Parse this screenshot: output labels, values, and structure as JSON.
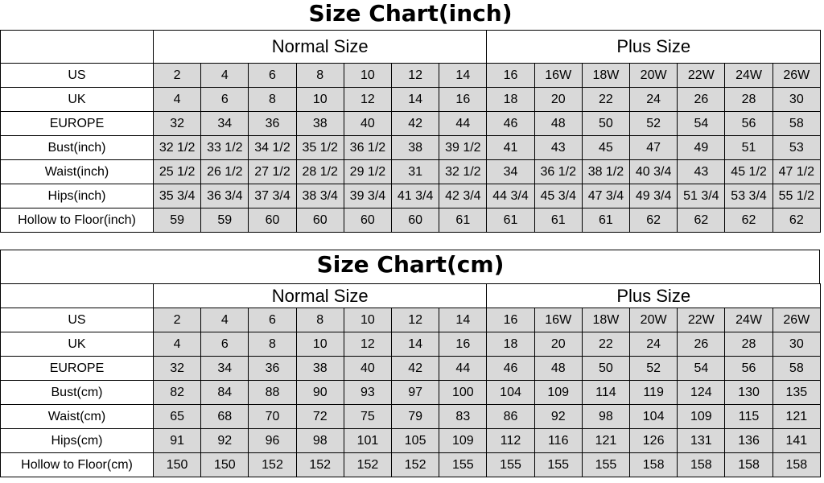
{
  "charts": [
    {
      "title": "Size Chart(inch)",
      "groups": [
        "Normal Size",
        "Plus Size"
      ],
      "rows": [
        {
          "label": "US",
          "values": [
            "2",
            "4",
            "6",
            "8",
            "10",
            "12",
            "14",
            "16",
            "16W",
            "18W",
            "20W",
            "22W",
            "24W",
            "26W"
          ]
        },
        {
          "label": "UK",
          "values": [
            "4",
            "6",
            "8",
            "10",
            "12",
            "14",
            "16",
            "18",
            "20",
            "22",
            "24",
            "26",
            "28",
            "30"
          ]
        },
        {
          "label": "EUROPE",
          "values": [
            "32",
            "34",
            "36",
            "38",
            "40",
            "42",
            "44",
            "46",
            "48",
            "50",
            "52",
            "54",
            "56",
            "58"
          ]
        },
        {
          "label": "Bust(inch)",
          "values": [
            "32 1/2",
            "33 1/2",
            "34 1/2",
            "35 1/2",
            "36 1/2",
            "38",
            "39 1/2",
            "41",
            "43",
            "45",
            "47",
            "49",
            "51",
            "53"
          ]
        },
        {
          "label": "Waist(inch)",
          "values": [
            "25 1/2",
            "26 1/2",
            "27 1/2",
            "28 1/2",
            "29 1/2",
            "31",
            "32 1/2",
            "34",
            "36 1/2",
            "38 1/2",
            "40 3/4",
            "43",
            "45 1/2",
            "47 1/2"
          ]
        },
        {
          "label": "Hips(inch)",
          "values": [
            "35 3/4",
            "36 3/4",
            "37 3/4",
            "38 3/4",
            "39 3/4",
            "41 3/4",
            "42 3/4",
            "44 3/4",
            "45 3/4",
            "47 3/4",
            "49 3/4",
            "51 3/4",
            "53 3/4",
            "55 1/2"
          ]
        },
        {
          "label": "Hollow to Floor(inch)",
          "values": [
            "59",
            "59",
            "60",
            "60",
            "60",
            "60",
            "61",
            "61",
            "61",
            "61",
            "62",
            "62",
            "62",
            "62"
          ]
        }
      ]
    },
    {
      "title": "Size Chart(cm)",
      "groups": [
        "Normal Size",
        "Plus Size"
      ],
      "rows": [
        {
          "label": "US",
          "values": [
            "2",
            "4",
            "6",
            "8",
            "10",
            "12",
            "14",
            "16",
            "16W",
            "18W",
            "20W",
            "22W",
            "24W",
            "26W"
          ]
        },
        {
          "label": "UK",
          "values": [
            "4",
            "6",
            "8",
            "10",
            "12",
            "14",
            "16",
            "18",
            "20",
            "22",
            "24",
            "26",
            "28",
            "30"
          ]
        },
        {
          "label": "EUROPE",
          "values": [
            "32",
            "34",
            "36",
            "38",
            "40",
            "42",
            "44",
            "46",
            "48",
            "50",
            "52",
            "54",
            "56",
            "58"
          ]
        },
        {
          "label": "Bust(cm)",
          "values": [
            "82",
            "84",
            "88",
            "90",
            "93",
            "97",
            "100",
            "104",
            "109",
            "114",
            "119",
            "124",
            "130",
            "135"
          ]
        },
        {
          "label": "Waist(cm)",
          "values": [
            "65",
            "68",
            "70",
            "72",
            "75",
            "79",
            "83",
            "86",
            "92",
            "98",
            "104",
            "109",
            "115",
            "121"
          ]
        },
        {
          "label": "Hips(cm)",
          "values": [
            "91",
            "92",
            "96",
            "98",
            "101",
            "105",
            "109",
            "112",
            "116",
            "121",
            "126",
            "131",
            "136",
            "141"
          ]
        },
        {
          "label": "Hollow to Floor(cm)",
          "values": [
            "150",
            "150",
            "152",
            "152",
            "152",
            "152",
            "155",
            "155",
            "155",
            "155",
            "158",
            "158",
            "158",
            "158"
          ]
        }
      ]
    }
  ]
}
